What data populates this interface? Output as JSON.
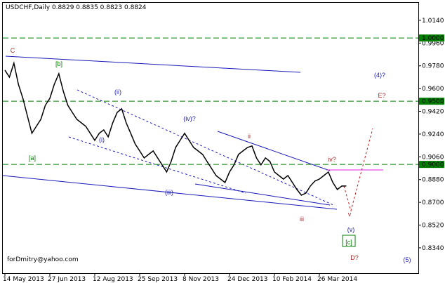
{
  "chart_data": {
    "type": "line",
    "title": "USDCHF,Daily  0.8829 0.8835 0.8823 0.8824",
    "watermark": "forDmitry@yahoo.com",
    "color": "#000000",
    "categories": [
      "14 May 2013",
      null,
      null,
      null,
      null,
      null,
      null,
      null,
      null,
      null,
      "27 Jun 2013",
      null,
      null,
      null,
      null,
      null,
      null,
      null,
      null,
      null,
      "12 Aug 2013",
      null,
      null,
      null,
      null,
      null,
      null,
      null,
      null,
      null,
      "25 Sep 2013",
      null,
      null,
      null,
      null,
      null,
      null,
      null,
      null,
      null,
      "8 Nov 2013",
      null,
      null,
      null,
      null,
      null,
      null,
      null,
      null,
      null,
      "24 Dec 2013",
      null,
      null,
      null,
      null,
      null,
      null,
      null,
      null,
      null,
      "10 Feb 2014",
      null,
      null,
      null,
      null,
      null,
      null,
      null,
      null,
      null,
      "26 Mar 2014",
      null,
      null,
      null,
      null,
      null,
      null
    ],
    "values": [
      0.9746,
      0.969,
      0.9801,
      0.9634,
      0.9523,
      0.9384,
      0.9246,
      0.9301,
      0.9357,
      0.9468,
      0.9523,
      0.9634,
      0.9718,
      0.9579,
      0.9468,
      0.9412,
      0.9357,
      0.9329,
      0.9301,
      0.9246,
      0.919,
      0.9246,
      0.9273,
      0.9218,
      0.9329,
      0.9412,
      0.944,
      0.9329,
      0.9246,
      0.9162,
      0.9107,
      0.9051,
      0.9079,
      0.9107,
      0.9051,
      0.8996,
      0.894,
      0.9023,
      0.9134,
      0.919,
      0.9246,
      0.919,
      0.9134,
      0.9107,
      0.9079,
      0.9023,
      0.8968,
      0.8912,
      0.8884,
      0.8857,
      0.894,
      0.8996,
      0.9079,
      0.9107,
      0.9134,
      0.9146,
      0.9051,
      0.8996,
      0.9051,
      0.9023,
      0.894,
      0.8912,
      0.8884,
      0.8912,
      0.8857,
      0.8801,
      0.8757,
      0.8773,
      0.8829,
      0.8868,
      0.8884,
      0.8912,
      0.894,
      0.8857,
      0.8801,
      0.8829,
      0.8829
    ],
    "ylim": [
      0.8134,
      1.0284
    ],
    "yticks": [
      {
        "value": 1.014,
        "label": "1.0140"
      },
      {
        "value": 0.996,
        "label": "0.9960"
      },
      {
        "value": 0.978,
        "label": "0.9780"
      },
      {
        "value": 0.96,
        "label": "0.9600"
      },
      {
        "value": 0.942,
        "label": "0.9420"
      },
      {
        "value": 0.924,
        "label": "0.9240"
      },
      {
        "value": 0.906,
        "label": "0.9060"
      },
      {
        "value": 0.888,
        "label": "0.8880"
      },
      {
        "value": 0.87,
        "label": "0.8700"
      },
      {
        "value": 0.852,
        "label": "0.8520"
      },
      {
        "value": 0.834,
        "label": "0.8340"
      }
    ],
    "levels": [
      {
        "value": 1.0,
        "label": "1.0000"
      },
      {
        "value": 0.95,
        "label": "0.9500"
      },
      {
        "value": 0.9,
        "label": "0.9000"
      }
    ],
    "level_color": "#008000",
    "annotations": [
      {
        "text": "C",
        "color": "#a52a2a"
      },
      {
        "text": "[b]",
        "color": "#008000"
      },
      {
        "text": "[a]",
        "color": "#008000"
      },
      {
        "text": "(ii)",
        "color": "#1a1ab8"
      },
      {
        "text": "(i)",
        "color": "#1a1ab8"
      },
      {
        "text": "(iv)?",
        "color": "#1a1ab8"
      },
      {
        "text": "(iii)",
        "color": "#1a1ab8"
      },
      {
        "text": "ii",
        "color": "#a52a2a"
      },
      {
        "text": "iii",
        "color": "#a52a2a"
      },
      {
        "text": "iv?",
        "color": "#a52a2a"
      },
      {
        "text": "v",
        "color": "#a52a2a"
      },
      {
        "text": "(v)",
        "color": "#1a1ab8"
      },
      {
        "text": "[c]",
        "color": "#008000"
      },
      {
        "text": "D?",
        "color": "#a52a2a"
      },
      {
        "text": "(4)?",
        "color": "#1a1ab8"
      },
      {
        "text": "E?",
        "color": "#a52a2a"
      },
      {
        "text": "(5)",
        "color": "#1a1ab8"
      }
    ]
  }
}
